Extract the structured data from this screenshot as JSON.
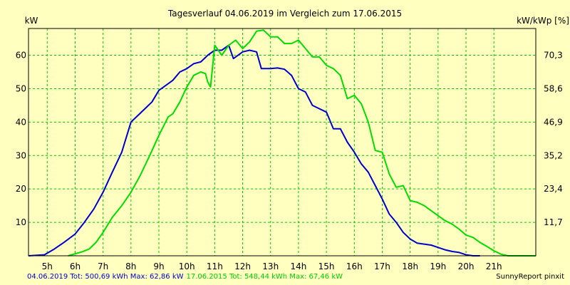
{
  "chart_data": {
    "type": "line",
    "title": "Tagesverlauf 04.06.2019 im Vergleich zum 17.06.2015",
    "ylabel_left": "kW",
    "ylabel_right": "kW/kWp [%]",
    "ylim": [
      0,
      68
    ],
    "yticks_left": [
      10,
      20,
      30,
      40,
      50,
      60
    ],
    "yticks_right": [
      {
        "value": 10,
        "label": "11,7"
      },
      {
        "value": 20,
        "label": "23,4"
      },
      {
        "value": 30,
        "label": "35,2"
      },
      {
        "value": 40,
        "label": "46,9"
      },
      {
        "value": 50,
        "label": "58,6"
      },
      {
        "value": 60,
        "label": "70,3"
      }
    ],
    "xlim": [
      4.33,
      22.5
    ],
    "xticks": [
      {
        "value": 5,
        "label": "5h"
      },
      {
        "value": 6,
        "label": "6h"
      },
      {
        "value": 7,
        "label": "7h"
      },
      {
        "value": 8,
        "label": "8h"
      },
      {
        "value": 9,
        "label": "9h"
      },
      {
        "value": 10,
        "label": "10h"
      },
      {
        "value": 11,
        "label": "11h"
      },
      {
        "value": 12,
        "label": "12h"
      },
      {
        "value": 13,
        "label": "13h"
      },
      {
        "value": 14,
        "label": "14h"
      },
      {
        "value": 15,
        "label": "15h"
      },
      {
        "value": 16,
        "label": "16h"
      },
      {
        "value": 17,
        "label": "17h"
      },
      {
        "value": 18,
        "label": "18h"
      },
      {
        "value": 19,
        "label": "19h"
      },
      {
        "value": 20,
        "label": "20h"
      },
      {
        "value": 21,
        "label": "21h"
      }
    ],
    "grid": true,
    "series": [
      {
        "name": "04.06.2019",
        "color": "#0000cc",
        "points": [
          [
            4.33,
            0
          ],
          [
            4.9,
            0.3
          ],
          [
            5.25,
            2
          ],
          [
            5.6,
            4
          ],
          [
            6,
            6.5
          ],
          [
            6.33,
            10
          ],
          [
            6.67,
            14
          ],
          [
            7,
            19
          ],
          [
            7.33,
            25
          ],
          [
            7.67,
            31
          ],
          [
            8,
            40
          ],
          [
            8.25,
            42
          ],
          [
            8.5,
            44
          ],
          [
            8.75,
            46
          ],
          [
            9,
            49.5
          ],
          [
            9.25,
            51
          ],
          [
            9.5,
            52.5
          ],
          [
            9.75,
            55
          ],
          [
            10,
            56
          ],
          [
            10.25,
            57.5
          ],
          [
            10.5,
            58
          ],
          [
            10.75,
            60
          ],
          [
            11,
            61.5
          ],
          [
            11.25,
            61.5
          ],
          [
            11.5,
            63
          ],
          [
            11.67,
            59
          ],
          [
            12,
            61
          ],
          [
            12.25,
            61.5
          ],
          [
            12.5,
            61
          ],
          [
            12.67,
            56
          ],
          [
            13,
            56
          ],
          [
            13.25,
            56.2
          ],
          [
            13.5,
            55.8
          ],
          [
            13.75,
            54
          ],
          [
            14,
            50
          ],
          [
            14.25,
            49
          ],
          [
            14.5,
            45
          ],
          [
            14.75,
            44
          ],
          [
            15,
            43
          ],
          [
            15.25,
            38
          ],
          [
            15.5,
            38
          ],
          [
            15.75,
            34
          ],
          [
            16,
            31
          ],
          [
            16.25,
            27.5
          ],
          [
            16.5,
            25
          ],
          [
            16.75,
            21
          ],
          [
            17,
            17
          ],
          [
            17.25,
            12.5
          ],
          [
            17.5,
            10
          ],
          [
            17.75,
            7
          ],
          [
            18,
            5
          ],
          [
            18.25,
            3.8
          ],
          [
            18.5,
            3.5
          ],
          [
            18.75,
            3.2
          ],
          [
            19,
            2.5
          ],
          [
            19.25,
            1.8
          ],
          [
            19.5,
            1.3
          ],
          [
            19.75,
            1
          ],
          [
            20,
            0.3
          ],
          [
            20.25,
            0
          ],
          [
            20.5,
            0
          ]
        ]
      },
      {
        "name": "17.06.2015",
        "color": "#00dd00",
        "points": [
          [
            5.75,
            0
          ],
          [
            6.25,
            1.2
          ],
          [
            6.5,
            2
          ],
          [
            6.75,
            4
          ],
          [
            7,
            7
          ],
          [
            7.33,
            11.5
          ],
          [
            7.67,
            15
          ],
          [
            8,
            19
          ],
          [
            8.33,
            24
          ],
          [
            8.67,
            30
          ],
          [
            9,
            36
          ],
          [
            9.33,
            41.5
          ],
          [
            9.5,
            42.5
          ],
          [
            9.75,
            46
          ],
          [
            10,
            50.5
          ],
          [
            10.25,
            54
          ],
          [
            10.5,
            55
          ],
          [
            10.67,
            54.5
          ],
          [
            10.75,
            52
          ],
          [
            10.85,
            50.5
          ],
          [
            11,
            63
          ],
          [
            11.25,
            60
          ],
          [
            11.5,
            63
          ],
          [
            11.75,
            64.5
          ],
          [
            12,
            62
          ],
          [
            12.25,
            64
          ],
          [
            12.5,
            67.2
          ],
          [
            12.75,
            67.5
          ],
          [
            13,
            65.5
          ],
          [
            13.25,
            65.5
          ],
          [
            13.5,
            63.5
          ],
          [
            13.75,
            63.5
          ],
          [
            14,
            64.5
          ],
          [
            14.25,
            62
          ],
          [
            14.5,
            59.5
          ],
          [
            14.75,
            59.5
          ],
          [
            15,
            57
          ],
          [
            15.25,
            56
          ],
          [
            15.5,
            54
          ],
          [
            15.75,
            47
          ],
          [
            16,
            48
          ],
          [
            16.25,
            45.5
          ],
          [
            16.5,
            40
          ],
          [
            16.75,
            31.5
          ],
          [
            17,
            31
          ],
          [
            17.25,
            24.5
          ],
          [
            17.5,
            20.5
          ],
          [
            17.75,
            21
          ],
          [
            18,
            16.5
          ],
          [
            18.25,
            16
          ],
          [
            18.5,
            15
          ],
          [
            18.75,
            13.5
          ],
          [
            19,
            12
          ],
          [
            19.25,
            10.5
          ],
          [
            19.5,
            9.5
          ],
          [
            19.75,
            8
          ],
          [
            20,
            6.2
          ],
          [
            20.25,
            5.5
          ],
          [
            20.5,
            4
          ],
          [
            20.75,
            2.8
          ],
          [
            21,
            1.5
          ],
          [
            21.25,
            0.5
          ],
          [
            21.5,
            0
          ],
          [
            22.5,
            0
          ]
        ]
      }
    ]
  },
  "footer": {
    "series1_text": "04.06.2019 Tot: 500,69 kWh Max: 62,86 kW",
    "series2_text": "17.06.2015 Tot: 548,44 kWh Max: 67,46 kW",
    "credit": "SunnyReport pinxit"
  },
  "colors": {
    "background": "#ffffc0",
    "grid": "#00cc00",
    "series1": "#0000cc",
    "series2": "#00dd00"
  }
}
